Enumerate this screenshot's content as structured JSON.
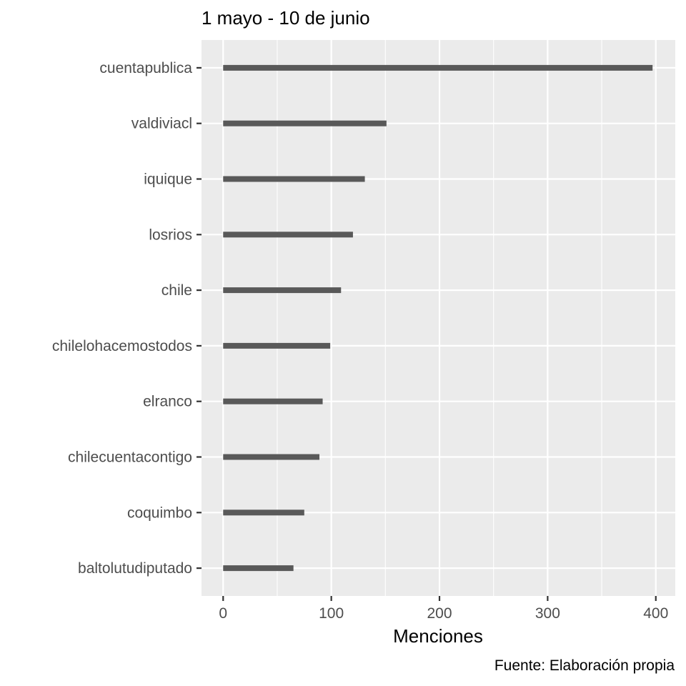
{
  "chart_data": {
    "type": "bar",
    "orientation": "horizontal",
    "title": "1 mayo - 10 de junio",
    "xlabel": "Menciones",
    "ylabel": "",
    "caption": "Fuente: Elaboración propia",
    "categories": [
      "cuentapublica",
      "valdiviacl",
      "iquique",
      "losrios",
      "chile",
      "chilelohacemostodos",
      "elranco",
      "chilecuentacontigo",
      "coquimbo",
      "baltolutudiputado"
    ],
    "values": [
      397,
      151,
      131,
      120,
      109,
      99,
      92,
      89,
      75,
      65
    ],
    "xlim": [
      -20,
      418
    ],
    "xticks": [
      0,
      100,
      200,
      300,
      400
    ],
    "grid": true,
    "legend": "none",
    "colors": {
      "bar": "#595959",
      "panel": "#ebebeb",
      "grid": "#ffffff",
      "tick_text": "#4d4d4d",
      "tick_mark": "#333333"
    }
  }
}
